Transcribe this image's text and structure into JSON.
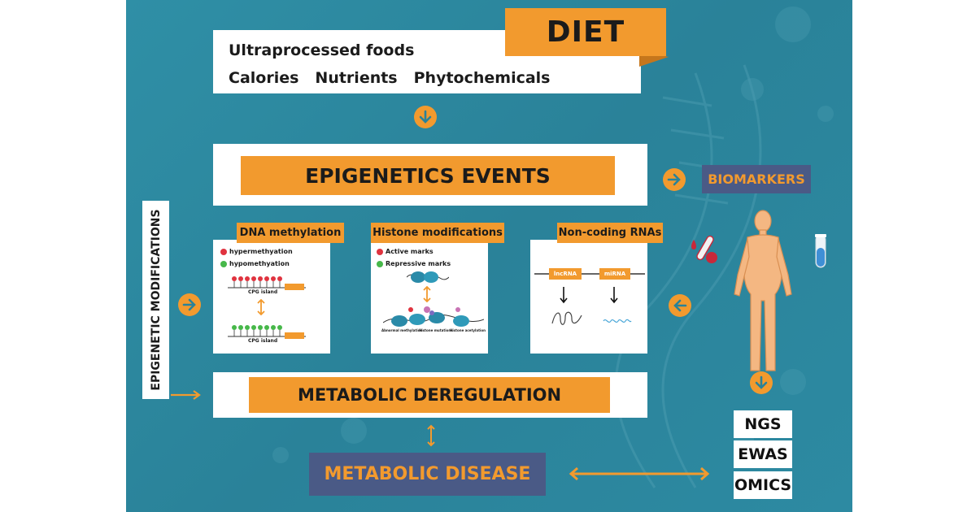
{
  "diet": {
    "title": "DIET",
    "line1": "Ultraprocessed foods",
    "line2_items": [
      "Calories",
      "Nutrients",
      "Phytochemicals"
    ]
  },
  "epigenetics_events": "EPIGENETICS EVENTS",
  "biomarkers": "BIOMARKERS",
  "side_label": "EPIGENETIC MODIFICATIONS",
  "panels": {
    "dna": {
      "label": "DNA methylation",
      "legend_hyper": "hypermethyation",
      "legend_hypo": "hypomethyation",
      "cpg_top": "CPG island",
      "cpg_bottom": "CPG island"
    },
    "histone": {
      "label": "Histone modifications",
      "legend_active": "Active marks",
      "legend_repressive": "Repressive marks",
      "captions": [
        "Abnormal methylation",
        "Histone mutations",
        "Histone acetylation"
      ]
    },
    "ncrna": {
      "label": "Non-coding RNAs",
      "lncrna": "lncRNA",
      "mirna": "miRNA"
    }
  },
  "metabolic_deregulation": "METABOLIC DEREGULATION",
  "metabolic_disease": "METABOLIC DISEASE",
  "omics": [
    "NGS",
    "EWAS",
    "OMICS"
  ],
  "colors": {
    "background": "#2a8299",
    "orange": "#f29a2e",
    "navy": "#4a5a86",
    "hyper_dot": "#e0333f",
    "hypo_dot": "#47b84a"
  }
}
